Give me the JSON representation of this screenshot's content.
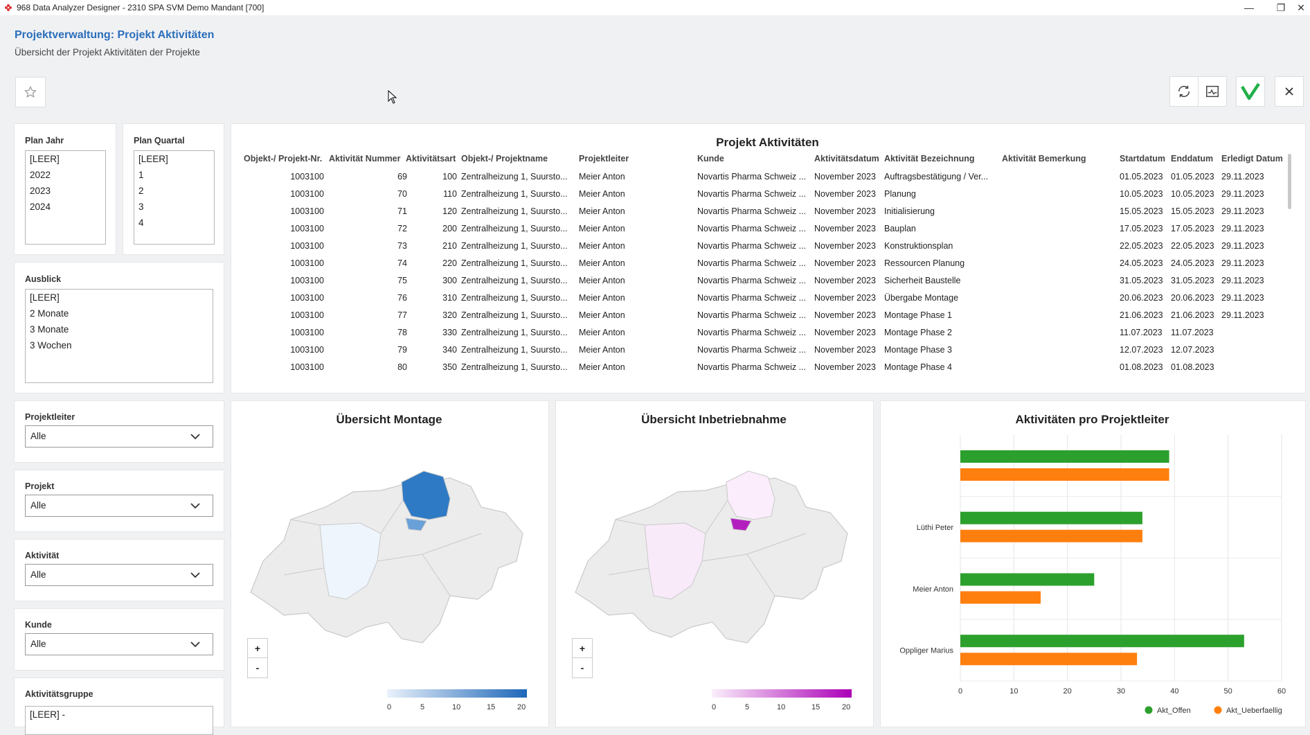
{
  "window": {
    "title": "968 Data Analyzer Designer - 2310 SPA SVM Demo Mandant [700]"
  },
  "header": {
    "title": "Projektverwaltung: Projekt Aktivitäten",
    "subtitle": "Übersicht der Projekt Aktivitäten der Projekte"
  },
  "filters": {
    "plan_jahr": {
      "label": "Plan Jahr",
      "items": [
        "[LEER]",
        "2022",
        "2023",
        "2024"
      ]
    },
    "plan_quartal": {
      "label": "Plan Quartal",
      "items": [
        "[LEER]",
        "1",
        "2",
        "3",
        "4"
      ]
    },
    "ausblick": {
      "label": "Ausblick",
      "items": [
        "[LEER]",
        "2 Monate",
        "3 Monate",
        "3 Wochen"
      ]
    },
    "projektleiter": {
      "label": "Projektleiter",
      "value": "Alle"
    },
    "projekt": {
      "label": "Projekt",
      "value": "Alle"
    },
    "aktivitaet": {
      "label": "Aktivität",
      "value": "Alle"
    },
    "kunde": {
      "label": "Kunde",
      "value": "Alle"
    },
    "aktivitaetsgruppe": {
      "label": "Aktivitätsgruppe",
      "first_item": "[LEER] -"
    }
  },
  "table": {
    "title": "Projekt Aktivitäten",
    "columns": [
      "Objekt-/ Projekt-Nr.",
      "Aktivität Nummer",
      "Aktivitätsart",
      "Objekt-/ Projektname",
      "Projektleiter",
      "Kunde",
      "Aktivitätsdatum",
      "Aktivität Bezeichnung",
      "Aktivität Bemerkung",
      "Startdatum",
      "Enddatum",
      "Erledigt Datum"
    ],
    "rows": [
      [
        "1003100",
        "69",
        "100",
        "Zentralheizung 1, Suursto...",
        "Meier Anton",
        "Novartis Pharma Schweiz ...",
        "November 2023",
        "Auftragsbestätigung / Ver...",
        "",
        "01.05.2023",
        "01.05.2023",
        "29.11.2023"
      ],
      [
        "1003100",
        "70",
        "110",
        "Zentralheizung 1, Suursto...",
        "Meier Anton",
        "Novartis Pharma Schweiz ...",
        "November 2023",
        "Planung",
        "",
        "10.05.2023",
        "10.05.2023",
        "29.11.2023"
      ],
      [
        "1003100",
        "71",
        "120",
        "Zentralheizung 1, Suursto...",
        "Meier Anton",
        "Novartis Pharma Schweiz ...",
        "November 2023",
        "Initialisierung",
        "",
        "15.05.2023",
        "15.05.2023",
        "29.11.2023"
      ],
      [
        "1003100",
        "72",
        "200",
        "Zentralheizung 1, Suursto...",
        "Meier Anton",
        "Novartis Pharma Schweiz ...",
        "November 2023",
        "Bauplan",
        "",
        "17.05.2023",
        "17.05.2023",
        "29.11.2023"
      ],
      [
        "1003100",
        "73",
        "210",
        "Zentralheizung 1, Suursto...",
        "Meier Anton",
        "Novartis Pharma Schweiz ...",
        "November 2023",
        "Konstruktionsplan",
        "",
        "22.05.2023",
        "22.05.2023",
        "29.11.2023"
      ],
      [
        "1003100",
        "74",
        "220",
        "Zentralheizung 1, Suursto...",
        "Meier Anton",
        "Novartis Pharma Schweiz ...",
        "November 2023",
        "Ressourcen Planung",
        "",
        "24.05.2023",
        "24.05.2023",
        "29.11.2023"
      ],
      [
        "1003100",
        "75",
        "300",
        "Zentralheizung 1, Suursto...",
        "Meier Anton",
        "Novartis Pharma Schweiz ...",
        "November 2023",
        "Sicherheit Baustelle",
        "",
        "31.05.2023",
        "31.05.2023",
        "29.11.2023"
      ],
      [
        "1003100",
        "76",
        "310",
        "Zentralheizung 1, Suursto...",
        "Meier Anton",
        "Novartis Pharma Schweiz ...",
        "November 2023",
        "Übergabe Montage",
        "",
        "20.06.2023",
        "20.06.2023",
        "29.11.2023"
      ],
      [
        "1003100",
        "77",
        "320",
        "Zentralheizung 1, Suursto...",
        "Meier Anton",
        "Novartis Pharma Schweiz ...",
        "November 2023",
        "Montage Phase 1",
        "",
        "21.06.2023",
        "21.06.2023",
        "29.11.2023"
      ],
      [
        "1003100",
        "78",
        "330",
        "Zentralheizung 1, Suursto...",
        "Meier Anton",
        "Novartis Pharma Schweiz ...",
        "November 2023",
        "Montage Phase 2",
        "",
        "11.07.2023",
        "11.07.2023",
        ""
      ],
      [
        "1003100",
        "79",
        "340",
        "Zentralheizung 1, Suursto...",
        "Meier Anton",
        "Novartis Pharma Schweiz ...",
        "November 2023",
        "Montage Phase 3",
        "",
        "12.07.2023",
        "12.07.2023",
        ""
      ],
      [
        "1003100",
        "80",
        "350",
        "Zentralheizung 1, Suursto...",
        "Meier Anton",
        "Novartis Pharma Schweiz ...",
        "November 2023",
        "Montage Phase 4",
        "",
        "01.08.2023",
        "01.08.2023",
        ""
      ]
    ]
  },
  "maps": {
    "montage": {
      "title": "Übersicht Montage",
      "accent": "#2f7ac4",
      "legend_ticks": [
        "0",
        "5",
        "10",
        "15",
        "20"
      ],
      "zoom_in": "+",
      "zoom_out": "-"
    },
    "inbetriebnahme": {
      "title": "Übersicht Inbetriebnahme",
      "accent": "#b31fbf",
      "legend_ticks": [
        "0",
        "5",
        "10",
        "15",
        "20"
      ],
      "zoom_in": "+",
      "zoom_out": "-"
    }
  },
  "chart_data": {
    "type": "bar",
    "orientation": "horizontal",
    "title": "Aktivitäten pro Projektleiter",
    "categories": [
      "",
      "Lüthi Peter",
      "Meier Anton",
      "Oppliger Marius"
    ],
    "series": [
      {
        "name": "Akt_Offen",
        "color": "#2ca02c",
        "values": [
          39,
          34,
          25,
          53
        ]
      },
      {
        "name": "Akt_Ueberfaellig",
        "color": "#ff7f0e",
        "values": [
          39,
          34,
          15,
          33
        ]
      }
    ],
    "xlim": [
      0,
      60
    ],
    "xticks": [
      "0",
      "10",
      "20",
      "30",
      "40",
      "50",
      "60"
    ],
    "grid": true,
    "legend_position": "bottom-right"
  }
}
